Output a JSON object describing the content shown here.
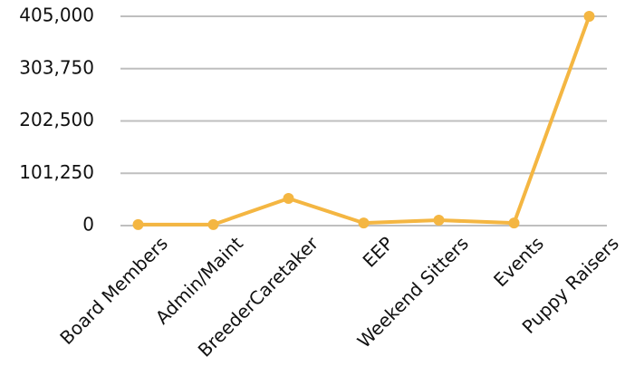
{
  "chart_data": {
    "type": "line",
    "categories": [
      "Board Members",
      "Admin/Maint",
      "BreederCaretaker",
      "EEP",
      "Weekend Sitters",
      "Events",
      "Puppy Raisers"
    ],
    "series": [
      {
        "name": null,
        "color": "#f4b642",
        "values": [
          2000,
          2000,
          52600,
          5000,
          10500,
          5000,
          405000
        ]
      }
    ],
    "ylim": [
      0,
      405000
    ],
    "yticks": [
      0,
      {
        "value": 101250,
        "label": "101,250"
      },
      {
        "value": 202500,
        "label": "202,500"
      },
      {
        "value": 303750,
        "label": "303,750"
      },
      {
        "value": 405000,
        "label": "405,000"
      }
    ],
    "grid": true
  }
}
